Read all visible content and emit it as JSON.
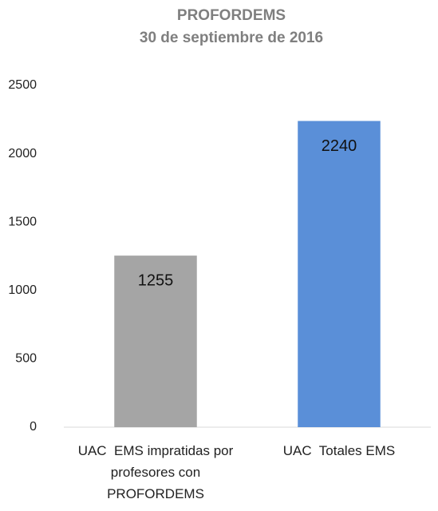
{
  "chart_data": {
    "type": "bar",
    "title": "PROFORDEMS",
    "subtitle": "30 de septiembre de 2016",
    "categories": [
      "UAC  EMS impratidas por profesores con PROFORDEMS",
      "UAC  Totales EMS"
    ],
    "values": [
      1255,
      2240
    ],
    "colors": [
      "#a5a5a5",
      "#5a8fd8"
    ],
    "ylim": [
      0,
      2500
    ],
    "yticks": [
      0,
      500,
      1000,
      1500,
      2000,
      2500
    ],
    "grid": false
  }
}
